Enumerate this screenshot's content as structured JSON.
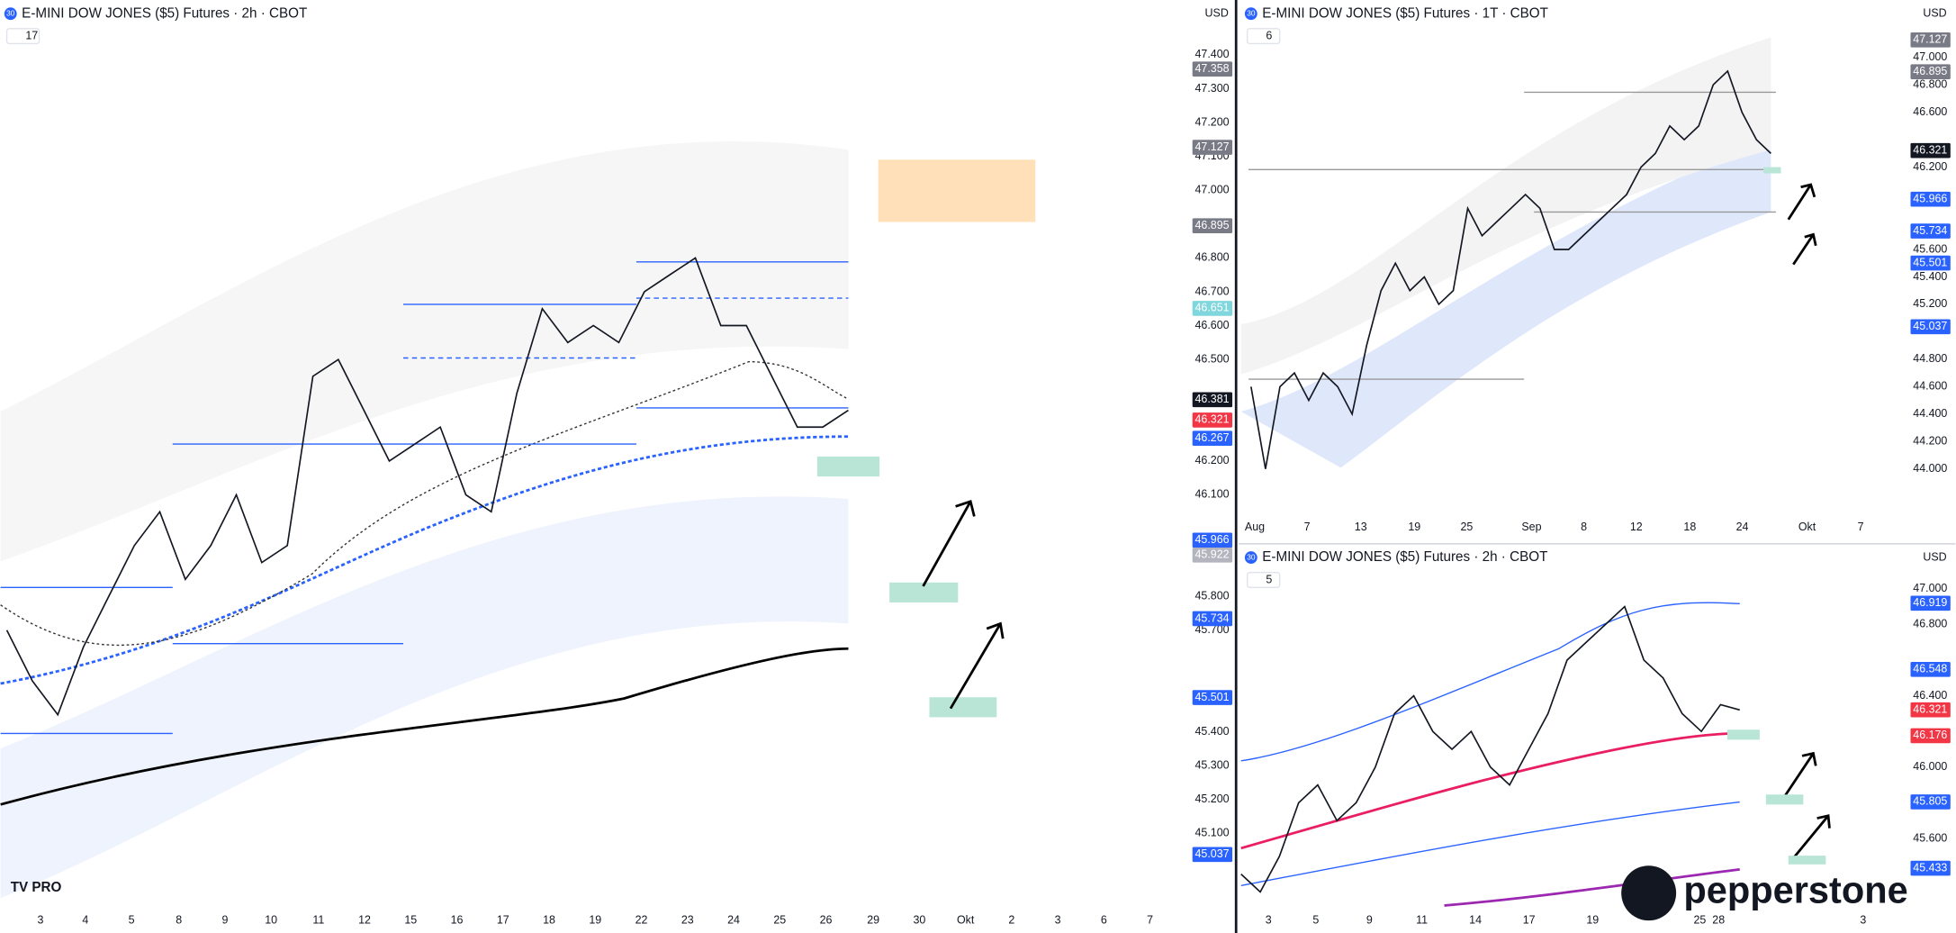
{
  "panels": [
    {
      "title": "E-MINI DOW JONES ($5) Futures · 2h · CBOT",
      "badge": "30",
      "counter": "17",
      "currency": "USD",
      "price_ticks": [
        {
          "value": 47.4,
          "label": "47.400"
        },
        {
          "value": 47.3,
          "label": "47.300"
        },
        {
          "value": 47.2,
          "label": "47.200"
        },
        {
          "value": 47.1,
          "label": "47.100"
        },
        {
          "value": 47.0,
          "label": "47.000"
        },
        {
          "value": 46.8,
          "label": "46.800"
        },
        {
          "value": 46.7,
          "label": "46.700"
        },
        {
          "value": 46.6,
          "label": "46.600"
        },
        {
          "value": 46.5,
          "label": "46.500"
        },
        {
          "value": 46.2,
          "label": "46.200"
        },
        {
          "value": 46.1,
          "label": "46.100"
        },
        {
          "value": 45.8,
          "label": "45.800"
        },
        {
          "value": 45.7,
          "label": "45.700"
        },
        {
          "value": 45.4,
          "label": "45.400"
        },
        {
          "value": 45.3,
          "label": "45.300"
        },
        {
          "value": 45.2,
          "label": "45.200"
        },
        {
          "value": 45.1,
          "label": "45.100"
        }
      ],
      "price_tags": [
        {
          "value": 47.358,
          "color": "#787b86"
        },
        {
          "value": 47.127,
          "color": "#787b86"
        },
        {
          "value": 46.895,
          "color": "#787b86"
        },
        {
          "value": 46.651,
          "color": "#7fd6dc"
        },
        {
          "value": 46.381,
          "color": "#131722"
        },
        {
          "value": 46.321,
          "color": "#f23645"
        },
        {
          "value": 46.267,
          "color": "#2962ff"
        },
        {
          "value": 45.966,
          "color": "#2962ff"
        },
        {
          "value": 45.922,
          "color": "#b2b5be"
        },
        {
          "value": 45.734,
          "color": "#2962ff"
        },
        {
          "value": 45.501,
          "color": "#2962ff"
        },
        {
          "value": 45.037,
          "color": "#2962ff"
        }
      ],
      "dates": [
        "3",
        "4",
        "5",
        "8",
        "9",
        "10",
        "11",
        "12",
        "15",
        "16",
        "17",
        "18",
        "19",
        "22",
        "23",
        "24",
        "25",
        "26",
        "29",
        "30",
        "Okt",
        "2",
        "3",
        "6",
        "7"
      ],
      "closes": [
        45.7,
        45.55,
        45.45,
        45.65,
        45.8,
        45.95,
        46.05,
        45.85,
        45.95,
        46.1,
        45.9,
        45.95,
        46.45,
        46.5,
        46.35,
        46.2,
        46.25,
        46.3,
        46.1,
        46.05,
        46.4,
        46.65,
        46.55,
        46.6,
        46.55,
        46.7,
        46.75,
        46.8,
        46.6,
        46.6,
        46.45,
        46.3,
        46.3,
        46.35
      ]
    },
    {
      "title": "E-MINI DOW JONES ($5) Futures · 1T · CBOT",
      "badge": "30",
      "counter": "6",
      "currency": "USD",
      "price_ticks": [
        {
          "value": 47.0,
          "label": "47.000"
        },
        {
          "value": 46.8,
          "label": "46.800"
        },
        {
          "value": 46.6,
          "label": "46.600"
        },
        {
          "value": 46.2,
          "label": "46.200"
        },
        {
          "value": 45.6,
          "label": "45.600"
        },
        {
          "value": 45.4,
          "label": "45.400"
        },
        {
          "value": 45.2,
          "label": "45.200"
        },
        {
          "value": 44.8,
          "label": "44.800"
        },
        {
          "value": 44.6,
          "label": "44.600"
        },
        {
          "value": 44.4,
          "label": "44.400"
        },
        {
          "value": 44.2,
          "label": "44.200"
        },
        {
          "value": 44.0,
          "label": "44.000"
        }
      ],
      "price_tags": [
        {
          "value": 47.127,
          "color": "#787b86"
        },
        {
          "value": 46.895,
          "color": "#787b86"
        },
        {
          "value": 46.321,
          "color": "#131722"
        },
        {
          "value": 45.966,
          "color": "#2962ff"
        },
        {
          "value": 45.734,
          "color": "#2962ff"
        },
        {
          "value": 45.501,
          "color": "#2962ff"
        },
        {
          "value": 45.037,
          "color": "#2962ff"
        }
      ],
      "dates": [
        "Aug",
        "7",
        "13",
        "19",
        "25",
        "Sep",
        "8",
        "12",
        "18",
        "24",
        "Okt",
        "7"
      ],
      "closes": [
        44.6,
        44.0,
        44.6,
        44.7,
        44.5,
        44.7,
        44.6,
        44.4,
        44.9,
        45.3,
        45.5,
        45.3,
        45.4,
        45.2,
        45.3,
        45.9,
        45.7,
        45.8,
        45.9,
        46.0,
        45.9,
        45.6,
        45.6,
        45.7,
        45.8,
        45.9,
        46.0,
        46.2,
        46.3,
        46.5,
        46.4,
        46.5,
        46.8,
        46.9,
        46.6,
        46.4,
        46.3
      ]
    },
    {
      "title": "E-MINI DOW JONES ($5) Futures · 2h · CBOT",
      "badge": "30",
      "counter": "5",
      "currency": "USD",
      "price_ticks": [
        {
          "value": 47.0,
          "label": "47.000"
        },
        {
          "value": 46.8,
          "label": "46.800"
        },
        {
          "value": 46.4,
          "label": "46.400"
        },
        {
          "value": 46.0,
          "label": "46.000"
        },
        {
          "value": 45.6,
          "label": "45.600"
        }
      ],
      "price_tags": [
        {
          "value": 46.919,
          "color": "#2962ff"
        },
        {
          "value": 46.548,
          "color": "#2962ff"
        },
        {
          "value": 46.321,
          "color": "#f23645"
        },
        {
          "value": 46.176,
          "color": "#f23645"
        },
        {
          "value": 45.805,
          "color": "#2962ff"
        },
        {
          "value": 45.433,
          "color": "#2962ff"
        }
      ],
      "dates": [
        "3",
        "5",
        "9",
        "11",
        "14",
        "17",
        "19",
        "25",
        "28",
        "3"
      ],
      "closes": [
        45.4,
        45.3,
        45.5,
        45.8,
        45.9,
        45.7,
        45.8,
        46.0,
        46.3,
        46.4,
        46.2,
        46.1,
        46.2,
        46.0,
        45.9,
        46.1,
        46.3,
        46.6,
        46.7,
        46.8,
        46.9,
        46.6,
        46.5,
        46.3,
        46.2,
        46.35,
        46.32
      ]
    }
  ],
  "branding": {
    "tv": "TV PRO",
    "broker": "pepperstone"
  }
}
